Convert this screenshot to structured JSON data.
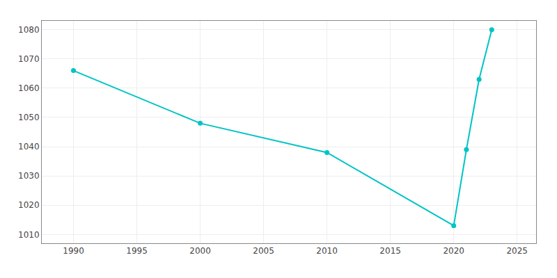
{
  "chart_data": {
    "type": "line",
    "x": [
      1990,
      2000,
      2010,
      2020,
      2021,
      2022,
      2023
    ],
    "values": [
      1066,
      1048,
      1038,
      1013,
      1039,
      1063,
      1080
    ],
    "color": "#00c4c4",
    "marker": "circle",
    "xlim": [
      1987.5,
      2026.5
    ],
    "ylim": [
      1007,
      1083
    ],
    "xticks": [
      1990,
      1995,
      2000,
      2005,
      2010,
      2015,
      2020,
      2025
    ],
    "yticks": [
      1010,
      1020,
      1030,
      1040,
      1050,
      1060,
      1070,
      1080
    ],
    "grid": true
  }
}
